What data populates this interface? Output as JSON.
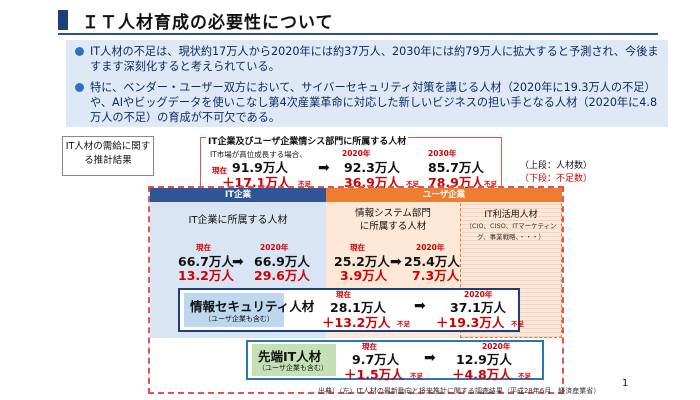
{
  "title": "ＩＴ人材育成の必要性について",
  "bullets": [
    "IT人材の不足は、現状約17万人から2020年には約37万人、2030年には約79万人に拡大すると予測され、今後ますます深刻化すると考えられている。",
    "特に、ベンダー・ユーザー双方において、サイバーセキュリティ対策を講じる人材（2020年に19.3万人の不足）や、AIやビッグデータを使いこなし第4次産業革命に対応した新しいビジネスの担い手となる人材（2020年に4.8万人の不足）の育成が不可欠である。"
  ],
  "side_note": "IT人材の需給に関する推計結果",
  "forecast": {
    "heading": "IT企業及びユーザ企業情シス部門に所属する人材",
    "scenario": "IT市場が高位成長する場合、",
    "current_label": "現在",
    "current_value": "91.9万人",
    "current_short": "＋17.1万人",
    "short_suffix": "不足",
    "y2020_label": "2020年",
    "y2020_value": "92.3万人",
    "y2020_short": "36.9万人",
    "y2030_label": "2030年",
    "y2030_value": "85.7万人",
    "y2030_short": "78.9万人"
  },
  "legend": {
    "top": "（上段：人材数）",
    "bottom": "（下段：不足数）"
  },
  "headers": {
    "it": "IT企業",
    "user": "ユーザ企業"
  },
  "it_company": {
    "label": "IT企業に所属する人材",
    "now_label": "現在",
    "now_value": "66.7万人",
    "now_short": "13.2万人",
    "y_label": "2020年",
    "y_value": "66.9万人",
    "y_short": "29.6万人"
  },
  "sys_dept": {
    "label1": "情報システム部門",
    "label2": "に所属する人材",
    "now_label": "現在",
    "now_value": "25.2万人",
    "now_short": "3.9万人",
    "y_label": "2020年",
    "y_value": "25.4万人",
    "y_short": "7.3万人"
  },
  "it_util": {
    "label": "IT利活用人材",
    "sub": "（CIO、CISO、ITマーケティング、事業戦略、・・・）"
  },
  "security": {
    "label": "情報セキュリティ人材",
    "sub": "（ユーザ企業も含む）",
    "now_label": "現在",
    "now_value": "28.1万人",
    "now_short": "＋13.2万人",
    "y_label": "2020年",
    "y_value": "37.1万人",
    "y_short": "＋19.3万人",
    "short_suffix": "不足"
  },
  "advanced": {
    "label": "先端IT人材",
    "sub": "（ユーザ企業も含む）",
    "now_label": "現在",
    "now_value": "9.7万人",
    "now_short": "＋1.5万人",
    "y_label": "2020年",
    "y_value": "12.9万人",
    "y_short": "＋4.8万人",
    "short_suffix": "不足"
  },
  "source": "出典）（左）IT人材の最新動向と将来推計に関する調査結果（平成28年6月　経済産業省）",
  "page_number": "1"
}
